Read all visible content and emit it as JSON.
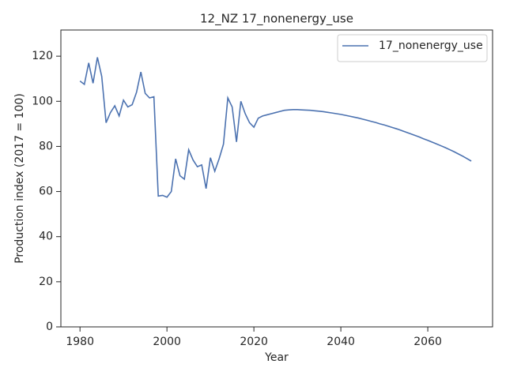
{
  "chart_data": {
    "type": "line",
    "title": "12_NZ 17_nonenergy_use",
    "xlabel": "Year",
    "ylabel": "Production index (2017 = 100)",
    "x": [
      1980,
      1981,
      1982,
      1983,
      1984,
      1985,
      1986,
      1987,
      1988,
      1989,
      1990,
      1991,
      1992,
      1993,
      1994,
      1995,
      1996,
      1997,
      1998,
      1999,
      2000,
      2001,
      2002,
      2003,
      2004,
      2005,
      2006,
      2007,
      2008,
      2009,
      2010,
      2011,
      2012,
      2013,
      2014,
      2015,
      2016,
      2017,
      2018,
      2019,
      2020,
      2021,
      2022,
      2023,
      2024,
      2025,
      2026,
      2027,
      2028,
      2029,
      2030,
      2031,
      2032,
      2033,
      2034,
      2035,
      2036,
      2037,
      2038,
      2039,
      2040,
      2041,
      2042,
      2043,
      2044,
      2045,
      2046,
      2047,
      2048,
      2049,
      2050,
      2051,
      2052,
      2053,
      2054,
      2055,
      2056,
      2057,
      2058,
      2059,
      2060,
      2061,
      2062,
      2063,
      2064,
      2065,
      2066,
      2067,
      2068,
      2069,
      2070
    ],
    "series": [
      {
        "name": "17_nonenergy_use",
        "color": "#4c72b0",
        "values": [
          109,
          107.5,
          117,
          108,
          119.5,
          111,
          90.5,
          95,
          98,
          93.5,
          100.5,
          97.5,
          98.5,
          104,
          113,
          103.5,
          101.5,
          102,
          58,
          58.3,
          57.5,
          60,
          74.5,
          67,
          65.5,
          78.5,
          74,
          71,
          71.8,
          61.3,
          75,
          69,
          74.5,
          81,
          101.5,
          97.5,
          82,
          100,
          94.5,
          90.5,
          88.5,
          92.5,
          93.5,
          94,
          94.5,
          95,
          95.5,
          96,
          96.2,
          96.3,
          96.3,
          96.2,
          96.1,
          96,
          95.8,
          95.6,
          95.4,
          95.1,
          94.8,
          94.5,
          94.2,
          93.8,
          93.4,
          93,
          92.6,
          92.1,
          91.6,
          91.1,
          90.6,
          90,
          89.5,
          88.9,
          88.3,
          87.7,
          87,
          86.3,
          85.6,
          84.9,
          84.2,
          83.4,
          82.7,
          81.9,
          81.1,
          80.3,
          79.5,
          78.6,
          77.7,
          76.7,
          75.7,
          74.6,
          73.5
        ]
      }
    ],
    "xlim": [
      1975.6,
      2074.9
    ],
    "ylim": [
      0,
      131.6
    ],
    "xticks": [
      1980,
      2000,
      2020,
      2040,
      2060
    ],
    "yticks": [
      0,
      20,
      40,
      60,
      80,
      100,
      120
    ],
    "legend": "upper right",
    "grid": false
  }
}
